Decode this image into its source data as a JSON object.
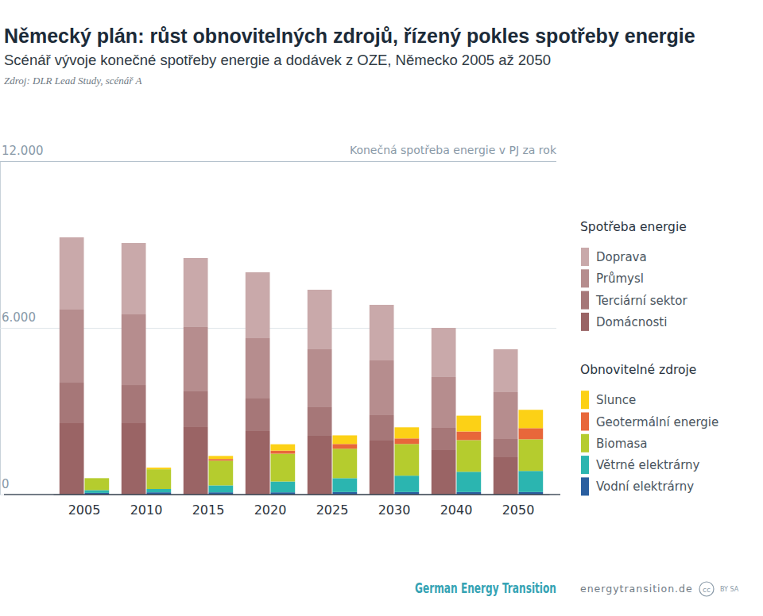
{
  "chart_data": {
    "type": "bar",
    "stacked": true,
    "grid": true,
    "legend": "right",
    "title": "Německý plán: růst obnovitelných zdrojů, řízený pokles spotřeby energie",
    "subtitle": "Scénář vývoje konečné spotřeby energie a dodávek z OZE, Německo 2005 až 2050",
    "source": "Zdroj: DLR Lead Study, scénář A",
    "y_label": "Konečná spotřeba energie v PJ za rok",
    "categories": [
      "2005",
      "2010",
      "2015",
      "2020",
      "2025",
      "2030",
      "2040",
      "2050"
    ],
    "ylim": [
      0,
      12000
    ],
    "yticks": [
      0,
      {
        "value": 6000,
        "label": "6.000"
      },
      {
        "value": 12000,
        "label": "12.000"
      }
    ],
    "groups": [
      {
        "name": "Spotřeba energie",
        "series": [
          {
            "name": "Doprava",
            "color": "#c9a9aa",
            "values": [
              2600,
              2571,
              2486,
              2371,
              2143,
              2000,
              1771,
              1543
            ]
          },
          {
            "name": "Průmysl",
            "color": "#b68d8e",
            "values": [
              2629,
              2543,
              2314,
              2171,
              2086,
              1971,
              1829,
              1686
            ]
          },
          {
            "name": "Terciární sektor",
            "color": "#a67778",
            "values": [
              1457,
              1371,
              1286,
              1171,
              1029,
              914,
              800,
              657
            ]
          },
          {
            "name": "Domácnosti",
            "color": "#9a6465",
            "values": [
              2571,
              2571,
              2429,
              2286,
              2114,
              1943,
              1600,
              1343
            ]
          }
        ]
      },
      {
        "name": "Obnovitelné zdroje",
        "series": [
          {
            "name": "Slunce",
            "color": "#fcd116",
            "values": [
              0,
              60,
              110,
              230,
              310,
              400,
              570,
              660
            ]
          },
          {
            "name": "Geotermální energie",
            "color": "#e8673a",
            "values": [
              0,
              0,
              60,
              110,
              170,
              200,
              310,
              400
            ]
          },
          {
            "name": "Biomasa",
            "color": "#b5cc2e",
            "values": [
              430,
              710,
              890,
              1000,
              1060,
              1140,
              1140,
              1140
            ]
          },
          {
            "name": "Větrné elektrárny",
            "color": "#2bb5b0",
            "values": [
              100,
              120,
              250,
              390,
              500,
              590,
              730,
              760
            ]
          },
          {
            "name": "Vodní elektrárny",
            "color": "#2a5fa0",
            "values": [
              60,
              80,
              80,
              80,
              90,
              90,
              90,
              90
            ]
          }
        ]
      }
    ],
    "footer": {
      "brand": "German Energy Transition",
      "url": "energytransition.de",
      "license_icon": "cc",
      "license": "BY SA"
    }
  }
}
